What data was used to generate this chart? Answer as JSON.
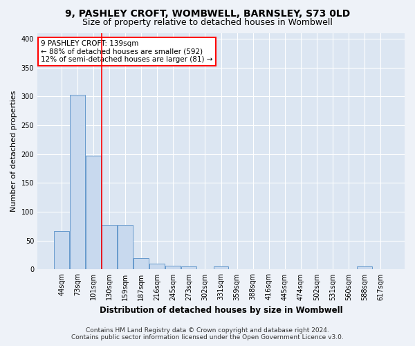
{
  "title": "9, PASHLEY CROFT, WOMBWELL, BARNSLEY, S73 0LD",
  "subtitle": "Size of property relative to detached houses in Wombwell",
  "xlabel": "Distribution of detached houses by size in Wombwell",
  "ylabel": "Number of detached properties",
  "bar_color": "#c8d9ee",
  "bar_edge_color": "#6699cc",
  "fig_bg_color": "#eef2f8",
  "ax_bg_color": "#dce6f2",
  "grid_color": "#ffffff",
  "categories": [
    "44sqm",
    "73sqm",
    "101sqm",
    "130sqm",
    "159sqm",
    "187sqm",
    "216sqm",
    "245sqm",
    "273sqm",
    "302sqm",
    "331sqm",
    "359sqm",
    "388sqm",
    "416sqm",
    "445sqm",
    "474sqm",
    "502sqm",
    "531sqm",
    "560sqm",
    "588sqm",
    "617sqm"
  ],
  "values": [
    67,
    303,
    197,
    77,
    77,
    20,
    10,
    6,
    5,
    0,
    5,
    0,
    0,
    0,
    0,
    0,
    0,
    0,
    0,
    5,
    0
  ],
  "vline_position": 2.5,
  "annotation_text": "9 PASHLEY CROFT: 139sqm\n← 88% of detached houses are smaller (592)\n12% of semi-detached houses are larger (81) →",
  "footer_line1": "Contains HM Land Registry data © Crown copyright and database right 2024.",
  "footer_line2": "Contains public sector information licensed under the Open Government Licence v3.0.",
  "ylim": [
    0,
    410
  ],
  "yticks": [
    0,
    50,
    100,
    150,
    200,
    250,
    300,
    350,
    400
  ],
  "title_fontsize": 10,
  "subtitle_fontsize": 9,
  "xlabel_fontsize": 8.5,
  "ylabel_fontsize": 8,
  "tick_fontsize": 7,
  "annotation_fontsize": 7.5,
  "footer_fontsize": 6.5
}
